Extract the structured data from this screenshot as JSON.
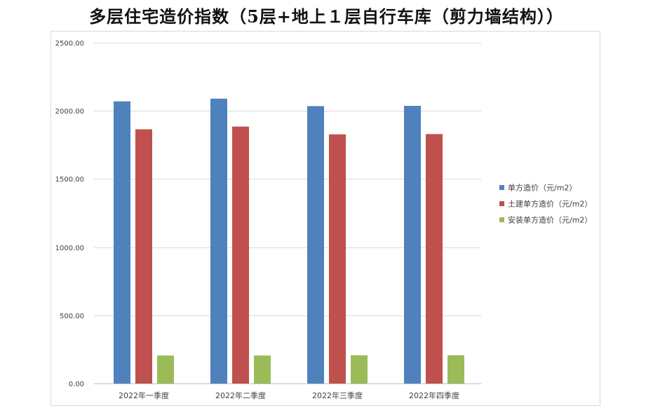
{
  "chart_data": {
    "type": "bar",
    "title": "多层住宅造价指数（5层+地上１层自行车库（剪力墙结构））",
    "categories": [
      "2022年一季度",
      "2022年二季度",
      "2022年三季度",
      "2022年四季度"
    ],
    "series": [
      {
        "name": "单方造价（元/m2）",
        "color": "#4f81bd",
        "values": [
          2070,
          2090,
          2035,
          2037
        ]
      },
      {
        "name": "土建单方造价（元/m2）",
        "color": "#c0504d",
        "values": [
          1865,
          1885,
          1828,
          1830
        ]
      },
      {
        "name": "安装单方造价（元/m2）",
        "color": "#9bbb59",
        "values": [
          205,
          205,
          207,
          207
        ]
      }
    ],
    "ylim": [
      0,
      2500
    ],
    "yticks": [
      "0.00",
      "500.00",
      "1000.00",
      "1500.00",
      "2000.00",
      "2500.00"
    ],
    "grid": true,
    "legend": "right"
  }
}
